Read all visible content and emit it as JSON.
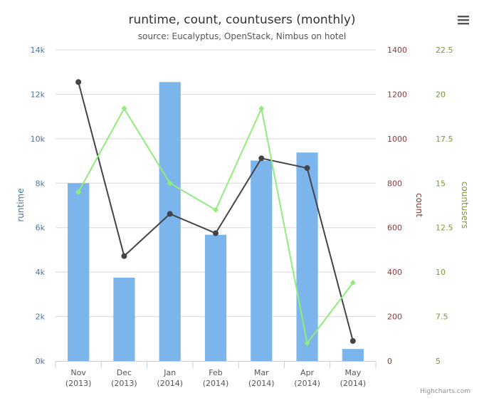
{
  "chart_data": {
    "type": "bar",
    "title": "runtime, count, countusers (monthly)",
    "subtitle": "source: Eucalyptus, OpenStack, Nimbus on hotel",
    "categories": [
      {
        "line1": "Nov",
        "line2": "(2013)"
      },
      {
        "line1": "Dec",
        "line2": "(2013)"
      },
      {
        "line1": "Jan",
        "line2": "(2014)"
      },
      {
        "line1": "Feb",
        "line2": "(2014)"
      },
      {
        "line1": "Mar",
        "line2": "(2014)"
      },
      {
        "line1": "Apr",
        "line2": "(2014)"
      },
      {
        "line1": "May",
        "line2": "(2014)"
      }
    ],
    "series": [
      {
        "type": "bar",
        "axis": "y1",
        "color": "#7cb5ec",
        "values": [
          8000,
          3750,
          12550,
          5680,
          9020,
          9380,
          540
        ]
      },
      {
        "type": "line",
        "axis": "y2",
        "color": "#434348",
        "values": [
          1255,
          472,
          662,
          575,
          912,
          868,
          90
        ]
      },
      {
        "type": "line",
        "axis": "y3",
        "color": "#90ed7d",
        "values": [
          14.5,
          19.2,
          15.0,
          13.5,
          19.2,
          6.0,
          9.4
        ]
      }
    ],
    "axes": {
      "y1": {
        "title": "runtime",
        "min": 0,
        "max": 14000,
        "ticks": [
          "0k",
          "2k",
          "4k",
          "6k",
          "8k",
          "10k",
          "12k",
          "14k"
        ]
      },
      "y2": {
        "title": "count",
        "min": 0,
        "max": 1400,
        "ticks": [
          "0",
          "200",
          "400",
          "600",
          "800",
          "1000",
          "1200",
          "1400"
        ]
      },
      "y3": {
        "title": "countusers",
        "min": 5,
        "max": 22.5,
        "ticks": [
          "5",
          "7.5",
          "10",
          "12.5",
          "15",
          "17.5",
          "20",
          "22.5"
        ]
      }
    },
    "grid": true,
    "legend": "none"
  },
  "credits": "Highcharts.com",
  "menu_icon": "hamburger-menu-icon"
}
